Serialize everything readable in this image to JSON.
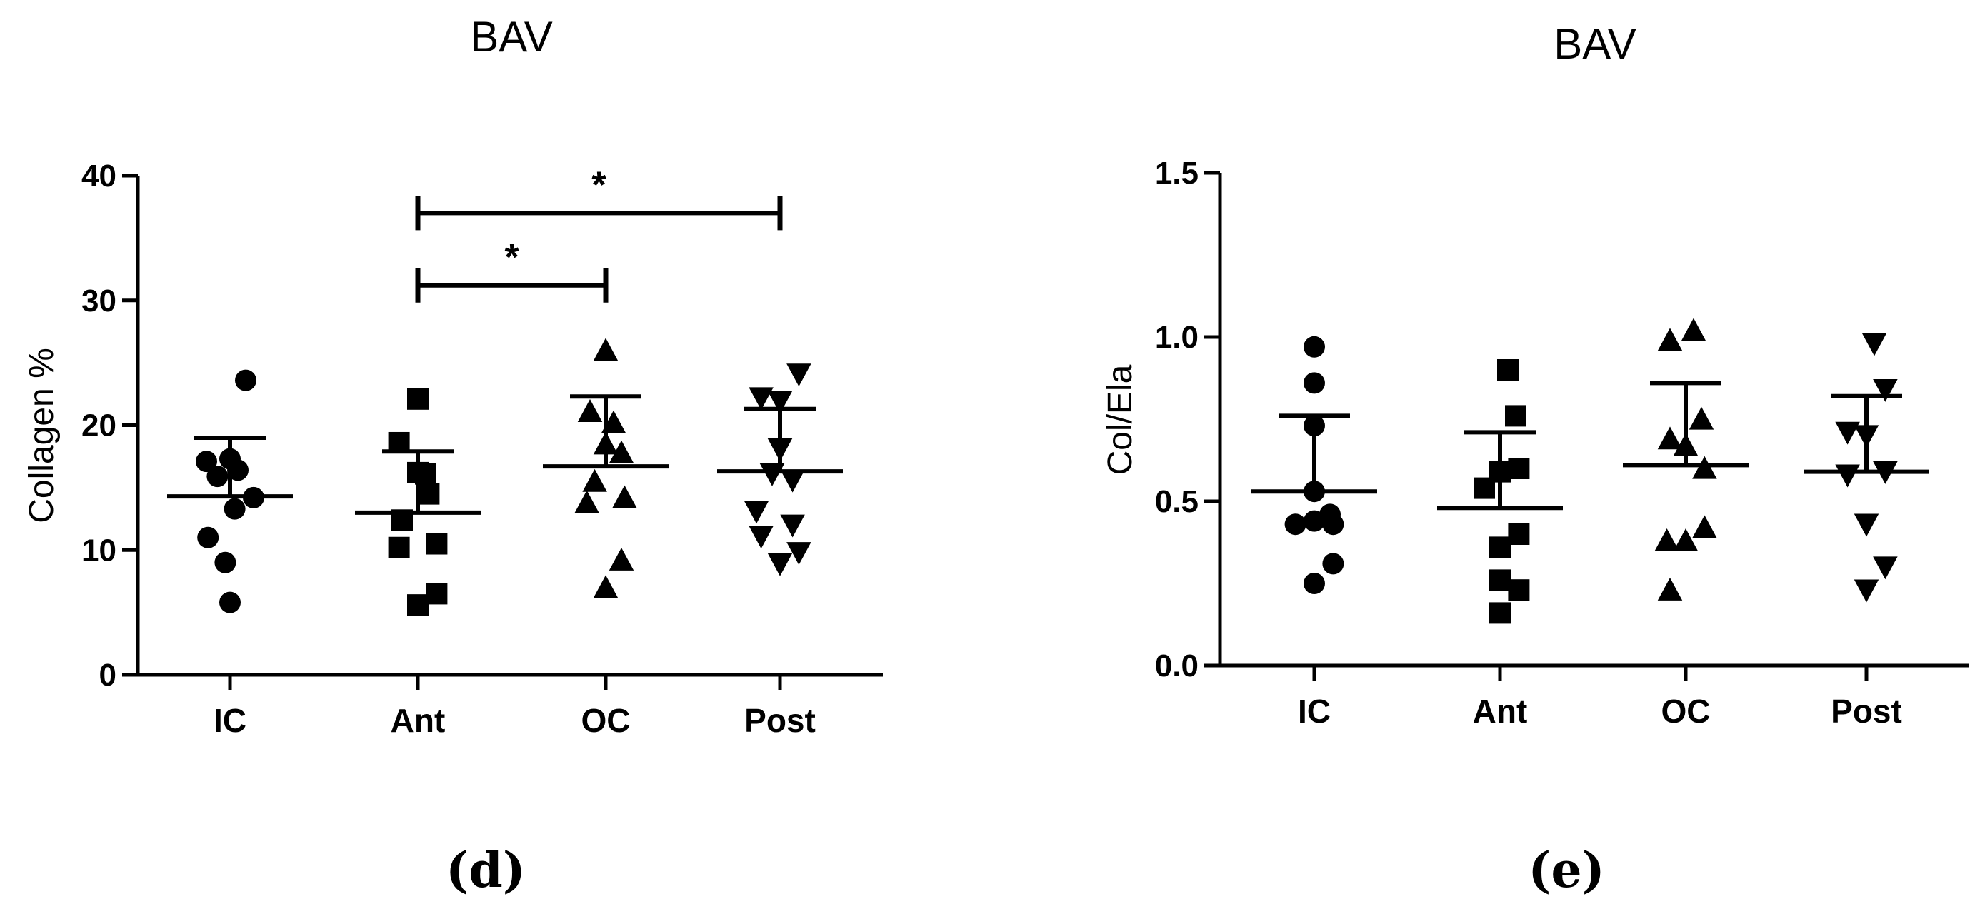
{
  "chart_data": [
    {
      "type": "scatter",
      "panel_label": "(d)",
      "title": "BAV",
      "xlabel": "",
      "ylabel": "Collagen %",
      "ylim": [
        0,
        40
      ],
      "yticks": [
        "0",
        "10",
        "20",
        "30",
        "40"
      ],
      "categories": [
        "IC",
        "Ant",
        "OC",
        "Post"
      ],
      "series": [
        {
          "category": "IC",
          "marker": "circle",
          "points": [
            [
              0.1,
              23.6
            ],
            [
              -0.15,
              17.1
            ],
            [
              0.0,
              17.3
            ],
            [
              0.05,
              16.4
            ],
            [
              -0.08,
              15.9
            ],
            [
              0.15,
              14.2
            ],
            [
              0.03,
              13.3
            ],
            [
              -0.14,
              11.0
            ],
            [
              -0.03,
              9.0
            ],
            [
              0.0,
              5.8
            ]
          ],
          "mean": 14.3,
          "sd_high": 19.0
        },
        {
          "category": "Ant",
          "marker": "square",
          "points": [
            [
              0.0,
              22.1
            ],
            [
              -0.12,
              18.6
            ],
            [
              0.05,
              16.1
            ],
            [
              0.0,
              16.2
            ],
            [
              0.07,
              14.5
            ],
            [
              -0.1,
              12.4
            ],
            [
              0.12,
              10.5
            ],
            [
              -0.12,
              10.2
            ],
            [
              0.12,
              6.5
            ],
            [
              0.0,
              5.6
            ]
          ],
          "mean": 13.0,
          "sd_high": 17.9
        },
        {
          "category": "OC",
          "marker": "triangle-up",
          "points": [
            [
              0.0,
              26.0
            ],
            [
              -0.1,
              21.1
            ],
            [
              0.05,
              20.2
            ],
            [
              0.0,
              18.5
            ],
            [
              0.1,
              17.8
            ],
            [
              -0.07,
              15.5
            ],
            [
              0.12,
              14.2
            ],
            [
              -0.12,
              13.8
            ],
            [
              0.1,
              9.2
            ],
            [
              0.0,
              7.0
            ]
          ],
          "mean": 16.7,
          "sd_high": 22.3
        },
        {
          "category": "Post",
          "marker": "triangle-down",
          "points": [
            [
              0.12,
              24.1
            ],
            [
              -0.12,
              22.2
            ],
            [
              0.0,
              21.9
            ],
            [
              0.0,
              18.1
            ],
            [
              -0.05,
              16.1
            ],
            [
              0.08,
              15.6
            ],
            [
              -0.15,
              13.1
            ],
            [
              0.08,
              12.0
            ],
            [
              -0.12,
              11.1
            ],
            [
              0.12,
              9.8
            ],
            [
              0.0,
              8.9
            ]
          ],
          "mean": 16.3,
          "sd_high": 21.3
        }
      ],
      "significance": [
        {
          "from": "Ant",
          "to": "OC",
          "y": 31.2,
          "label": "*"
        },
        {
          "from": "Ant",
          "to": "Post",
          "y": 37.0,
          "label": "*"
        }
      ]
    },
    {
      "type": "scatter",
      "panel_label": "(e)",
      "title": "BAV",
      "xlabel": "",
      "ylabel": "Col/Ela",
      "ylim": [
        0,
        1.5
      ],
      "yticks": [
        "0.0",
        "0.5",
        "1.0",
        "1.5"
      ],
      "categories": [
        "IC",
        "Ant",
        "OC",
        "Post"
      ],
      "series": [
        {
          "category": "IC",
          "marker": "circle",
          "points": [
            [
              0.0,
              0.97
            ],
            [
              0.0,
              0.86
            ],
            [
              0.0,
              0.73
            ],
            [
              0.0,
              0.53
            ],
            [
              -0.12,
              0.43
            ],
            [
              0.0,
              0.44
            ],
            [
              0.1,
              0.46
            ],
            [
              0.12,
              0.43
            ],
            [
              0.12,
              0.31
            ],
            [
              0.0,
              0.25
            ]
          ],
          "mean": 0.53,
          "sd_high": 0.76
        },
        {
          "category": "Ant",
          "marker": "square",
          "points": [
            [
              0.05,
              0.9
            ],
            [
              0.1,
              0.76
            ],
            [
              0.12,
              0.6
            ],
            [
              0.0,
              0.59
            ],
            [
              -0.1,
              0.54
            ],
            [
              0.12,
              0.4
            ],
            [
              0.0,
              0.36
            ],
            [
              0.0,
              0.26
            ],
            [
              0.12,
              0.23
            ],
            [
              0.0,
              0.16
            ]
          ],
          "mean": 0.48,
          "sd_high": 0.71
        },
        {
          "category": "OC",
          "marker": "triangle-up",
          "points": [
            [
              0.05,
              1.02
            ],
            [
              -0.1,
              0.99
            ],
            [
              0.1,
              0.75
            ],
            [
              -0.1,
              0.69
            ],
            [
              0.0,
              0.67
            ],
            [
              0.12,
              0.6
            ],
            [
              0.12,
              0.42
            ],
            [
              -0.12,
              0.38
            ],
            [
              0.0,
              0.38
            ],
            [
              -0.1,
              0.23
            ]
          ],
          "mean": 0.61,
          "sd_high": 0.86
        },
        {
          "category": "Post",
          "marker": "triangle-down",
          "points": [
            [
              0.05,
              0.98
            ],
            [
              0.12,
              0.84
            ],
            [
              -0.12,
              0.71
            ],
            [
              0.0,
              0.7
            ],
            [
              0.12,
              0.59
            ],
            [
              -0.12,
              0.58
            ],
            [
              0.0,
              0.43
            ],
            [
              0.12,
              0.3
            ],
            [
              0.0,
              0.23
            ]
          ],
          "mean": 0.59,
          "sd_high": 0.82
        }
      ],
      "significance": []
    }
  ]
}
